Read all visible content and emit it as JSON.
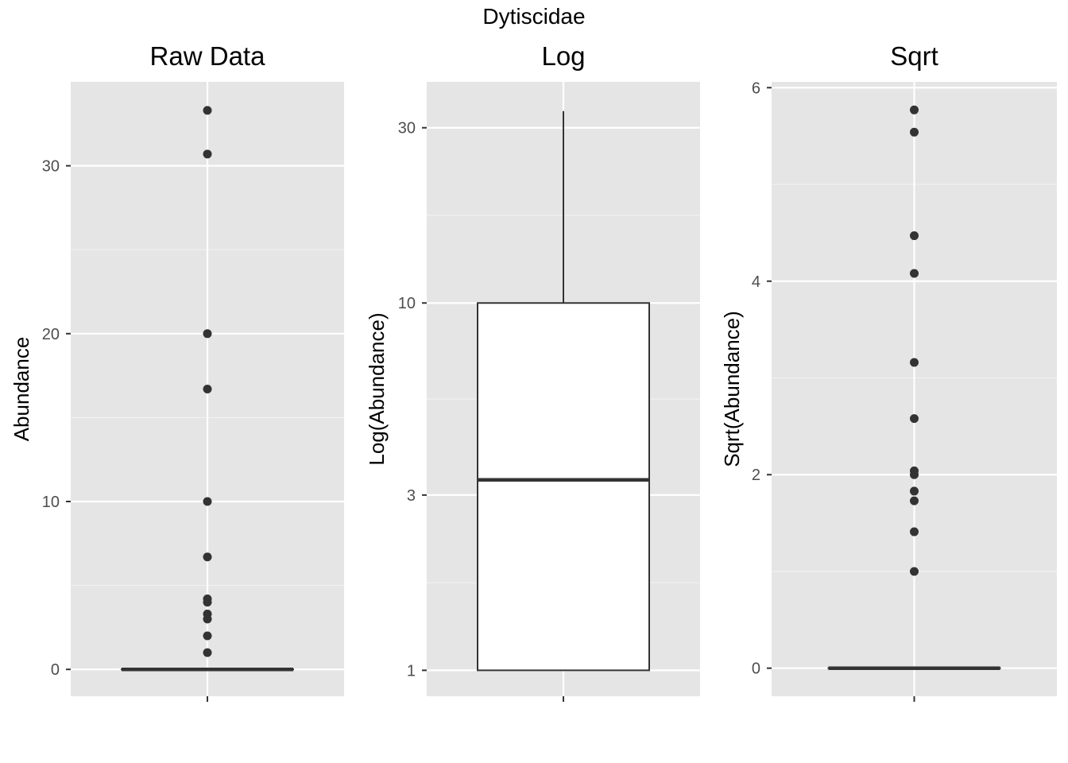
{
  "figure": {
    "title": "Dytiscidae"
  },
  "chart_data": [
    {
      "type": "box",
      "title": "Raw Data",
      "ylabel": "Abundance",
      "xlabel": "",
      "yscale": "linear",
      "ylim": [
        -1.6,
        35.0
      ],
      "yticks": [
        0,
        10,
        20,
        30
      ],
      "ytick_labels": [
        "0",
        "10",
        "20",
        "30"
      ],
      "box": {
        "min": 0,
        "q1": 0,
        "median": 0,
        "q3": 0,
        "max": 0
      },
      "outliers": [
        33.3,
        30.7,
        20,
        16.7,
        10,
        6.7,
        4.2,
        4.0,
        3.3,
        3.0,
        2.0,
        1.0
      ],
      "grid": true
    },
    {
      "type": "box",
      "title": "Log",
      "ylabel": "Log(Abundance)",
      "xlabel": "",
      "yscale": "log",
      "ylim": [
        0.85,
        40.0
      ],
      "yticks": [
        1,
        3,
        10,
        30
      ],
      "ytick_labels": [
        "1",
        "3",
        "10",
        "30"
      ],
      "box": {
        "min": 1,
        "q1": 1,
        "median": 3.3,
        "q3": 10,
        "max": 33.3
      },
      "outliers": [],
      "grid": true
    },
    {
      "type": "box",
      "title": "Sqrt",
      "ylabel": "Sqrt(Abundance)",
      "xlabel": "",
      "yscale": "linear",
      "ylim": [
        -0.29,
        6.06
      ],
      "yticks": [
        0,
        2,
        4,
        6
      ],
      "ytick_labels": [
        "0",
        "2",
        "4",
        "6"
      ],
      "box": {
        "min": 0,
        "q1": 0,
        "median": 0,
        "q3": 0,
        "max": 0
      },
      "outliers": [
        5.77,
        5.54,
        4.47,
        4.08,
        3.16,
        2.58,
        2.04,
        2.0,
        1.83,
        1.73,
        1.41,
        1.0
      ],
      "grid": true
    }
  ]
}
